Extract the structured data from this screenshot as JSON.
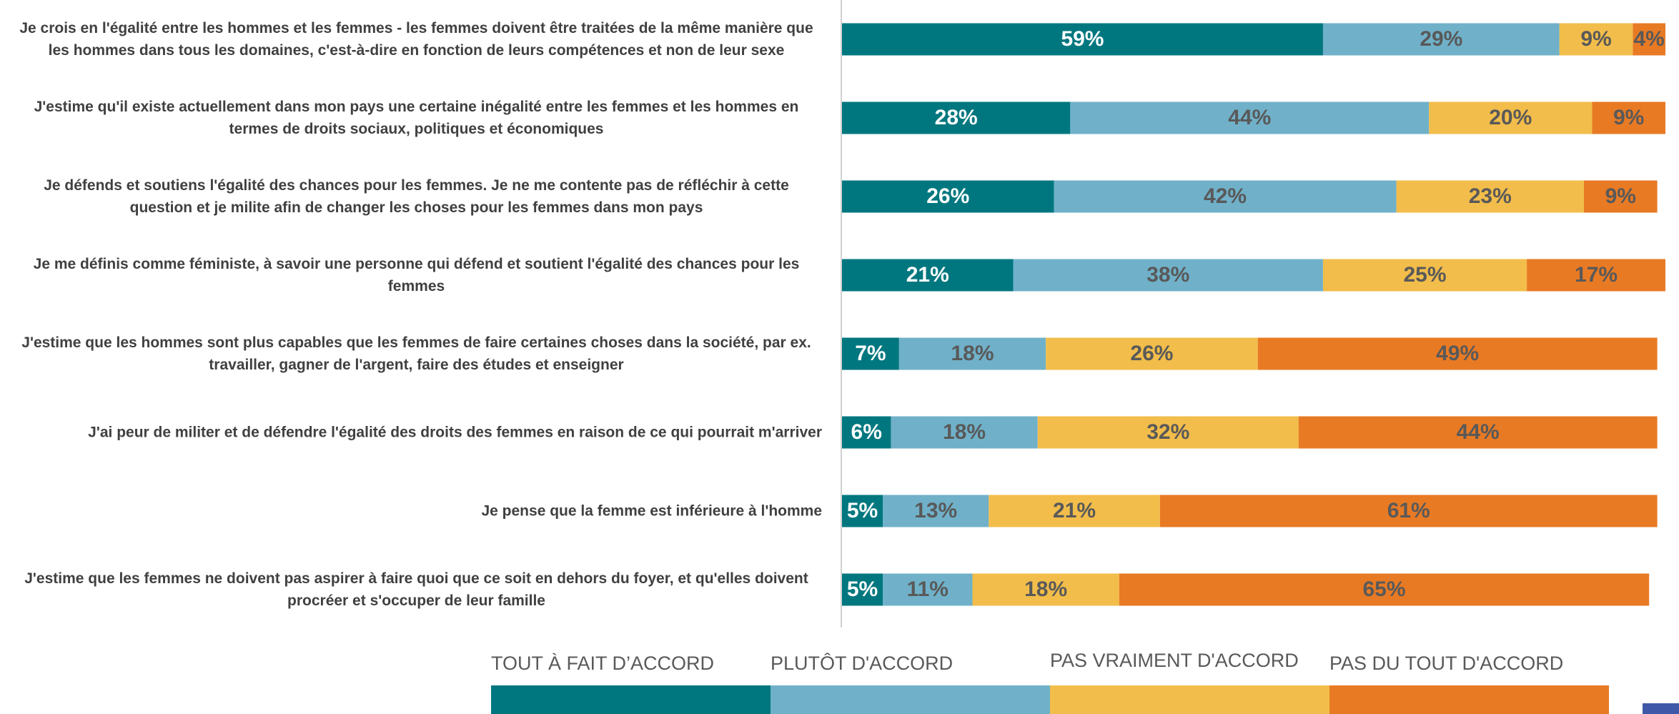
{
  "chart_data": {
    "type": "stacked-bar",
    "orientation": "horizontal",
    "categories": [
      "Je crois en l'égalité entre les hommes et les femmes - les femmes doivent être traitées de la même manière que les hommes dans tous les domaines, c'est-à-dire en fonction de leurs compétences et non de leur sexe",
      "J'estime qu'il existe actuellement dans mon pays une certaine inégalité entre les femmes et les hommes en termes de droits sociaux, politiques et économiques",
      "Je défends et soutiens l'égalité des chances pour les femmes. Je ne me contente pas de réfléchir à cette question et je milite afin de changer les choses pour les femmes dans mon pays",
      "Je me définis comme féministe, à savoir une personne qui défend et soutient l'égalité des chances pour les femmes",
      "J'estime que les hommes sont plus capables que les femmes de faire certaines choses dans la société, par ex. travailler, gagner de l'argent, faire des études et enseigner",
      "J'ai peur de militer et de défendre l'égalité des droits des femmes en raison de ce qui pourrait m'arriver",
      "Je pense que la femme est inférieure à l'homme",
      "J'estime que les femmes ne doivent pas aspirer à faire quoi que ce soit en dehors du foyer, et qu'elles doivent procréer et s'occuper de leur famille"
    ],
    "series": [
      {
        "name": "TOUT À FAIT D’ACCORD",
        "color": "#00777f",
        "label_color": "#ffffff",
        "values": [
          59,
          28,
          26,
          21,
          7,
          6,
          5,
          5
        ],
        "value_labels": [
          "59%",
          "28%",
          "26%",
          "21%",
          "7%",
          "6%",
          "5%",
          "5%"
        ]
      },
      {
        "name": "PLUTÔT D'ACCORD",
        "color": "#70b1c9",
        "label_color": "#595959",
        "values": [
          29,
          44,
          42,
          38,
          18,
          18,
          13,
          11
        ],
        "value_labels": [
          "29%",
          "44%",
          "42%",
          "38%",
          "18%",
          "18%",
          "13%",
          "11%"
        ]
      },
      {
        "name": "PAS VRAIMENT D'ACCORD",
        "color": "#f2bd4a",
        "label_color": "#595959",
        "values": [
          9,
          20,
          23,
          25,
          26,
          32,
          21,
          18
        ],
        "value_labels": [
          "9%",
          "20%",
          "23%",
          "25%",
          "26%",
          "32%",
          "21%",
          "18%"
        ]
      },
      {
        "name": "PAS DU TOUT D'ACCORD",
        "color": "#e87a24",
        "label_color": "#595959",
        "values": [
          4,
          9,
          9,
          17,
          49,
          44,
          61,
          65
        ],
        "value_labels": [
          "4%",
          "9%",
          "9%",
          "17%",
          "49%",
          "44%",
          "61%",
          "65%"
        ]
      }
    ],
    "legend": "bottom"
  }
}
